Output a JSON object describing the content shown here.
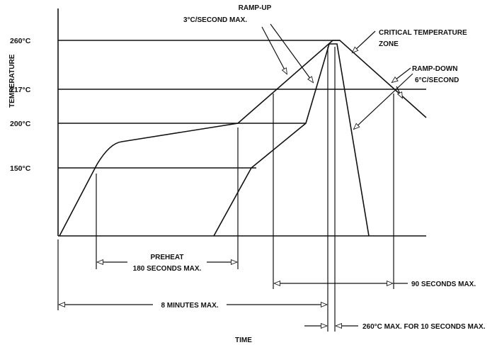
{
  "axes": {
    "y_label": "TEMPERATURE",
    "x_label": "TIME",
    "ticks": [
      "260°C",
      "217°C",
      "200°C",
      "150°C"
    ]
  },
  "annotations": {
    "ramp_up_line1": "RAMP-UP",
    "ramp_up_line2": "3°C/SECOND MAX.",
    "critical_line1": "CRITICAL TEMPERATURE",
    "critical_line2": "ZONE",
    "ramp_down_line1": "RAMP-DOWN",
    "ramp_down_line2": "6°C/SECOND",
    "preheat_line1": "PREHEAT",
    "preheat_line2": "180 SECONDS MAX.",
    "ninety": "90 SECONDS MAX.",
    "eight_min": "8 MINUTES MAX.",
    "peak_hold": "260°C MAX. FOR 10 SECONDS MAX."
  }
}
